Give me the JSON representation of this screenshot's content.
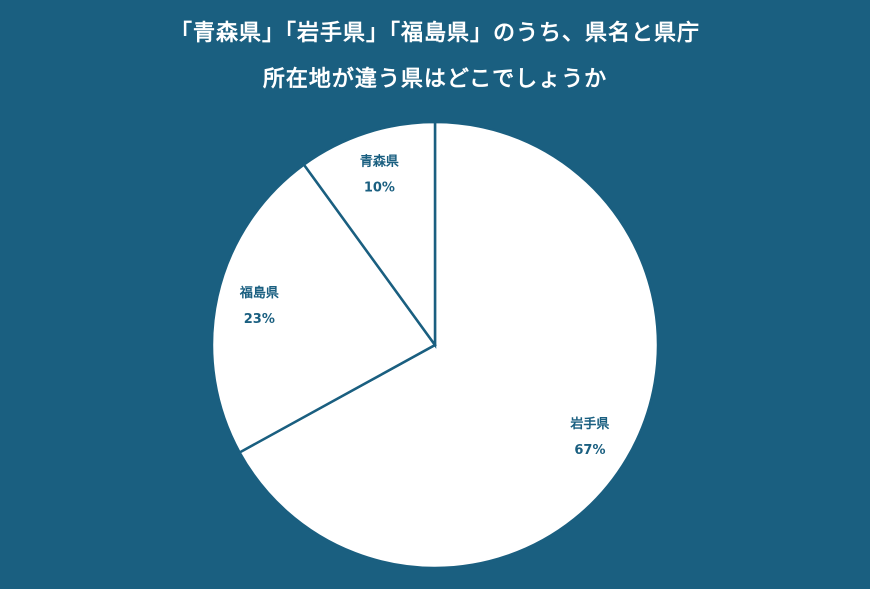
{
  "chart_data": {
    "type": "pie",
    "title": [
      "「青森県」「岩手県」「福島県」のうち、県名と県庁",
      "所在地が違う県はどこでしょうか"
    ],
    "categories": [
      "岩手県",
      "福島県",
      "青森県"
    ],
    "values": [
      67,
      23,
      10
    ],
    "value_labels": [
      "67%",
      "23%",
      "10%"
    ],
    "color": "#ffffff"
  }
}
